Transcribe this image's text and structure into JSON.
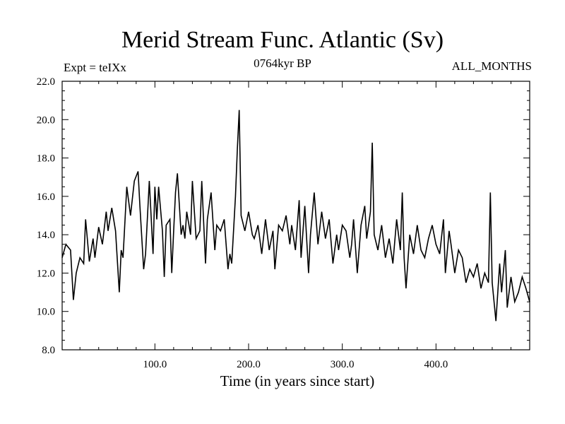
{
  "chart_data": {
    "type": "line",
    "title": "Merid Stream Func. Atlantic (Sv)",
    "subtitle": "0764kyr BP",
    "expt_label": "Expt = teIXx",
    "season_label": "ALL_MONTHS",
    "xlabel": "Time (in years since start)",
    "ylabel": "",
    "xlim": [
      1,
      500
    ],
    "ylim": [
      8.0,
      22.0
    ],
    "x_ticks": [
      100,
      200,
      300,
      400
    ],
    "x_tick_labels": [
      "100.0",
      "200.0",
      "300.0",
      "400.0"
    ],
    "y_ticks": [
      8,
      10,
      12,
      14,
      16,
      18,
      20,
      22
    ],
    "y_tick_labels": [
      "8.0",
      "10.0",
      "12.0",
      "14.0",
      "16.0",
      "18.0",
      "20.0",
      "22.0"
    ],
    "series": [
      {
        "name": "Merid Stream Func. Atlantic",
        "x": [
          1,
          5,
          10,
          13,
          16,
          20,
          24,
          26,
          30,
          34,
          36,
          40,
          44,
          48,
          50,
          54,
          58,
          62,
          64,
          66,
          70,
          74,
          78,
          82,
          84,
          88,
          90,
          94,
          98,
          100,
          102,
          104,
          108,
          110,
          112,
          116,
          118,
          120,
          122,
          124,
          128,
          130,
          132,
          134,
          138,
          140,
          144,
          148,
          150,
          154,
          156,
          160,
          164,
          166,
          170,
          174,
          178,
          180,
          182,
          186,
          188,
          190,
          192,
          196,
          200,
          204,
          206,
          210,
          214,
          218,
          222,
          226,
          228,
          232,
          236,
          240,
          244,
          246,
          250,
          254,
          256,
          260,
          264,
          266,
          270,
          274,
          278,
          282,
          286,
          290,
          294,
          296,
          300,
          304,
          308,
          310,
          312,
          316,
          320,
          324,
          326,
          330,
          332,
          334,
          338,
          342,
          346,
          350,
          354,
          358,
          362,
          364,
          366,
          368,
          372,
          376,
          380,
          384,
          388,
          392,
          396,
          400,
          404,
          408,
          410,
          414,
          416,
          420,
          424,
          428,
          432,
          436,
          440,
          444,
          448,
          452,
          456,
          458,
          460,
          464,
          468,
          470,
          474,
          476,
          480,
          484,
          488,
          492,
          496,
          500
        ],
        "values": [
          12.8,
          13.5,
          13.2,
          10.6,
          12.0,
          12.8,
          12.5,
          14.8,
          12.6,
          13.8,
          12.8,
          14.4,
          13.5,
          15.2,
          14.2,
          15.4,
          14.2,
          11.0,
          13.2,
          12.8,
          16.5,
          15.0,
          16.8,
          17.3,
          15.5,
          12.2,
          13.0,
          16.8,
          13.0,
          16.5,
          14.8,
          16.5,
          14.2,
          11.8,
          14.5,
          14.8,
          12.0,
          14.2,
          16.2,
          17.2,
          14.0,
          14.5,
          13.8,
          15.2,
          14.0,
          16.8,
          13.8,
          14.2,
          16.8,
          12.5,
          14.8,
          16.2,
          13.2,
          14.5,
          14.2,
          14.8,
          12.2,
          13.0,
          12.5,
          16.0,
          18.5,
          20.5,
          15.0,
          14.2,
          15.2,
          14.0,
          13.8,
          14.5,
          13.0,
          14.8,
          13.2,
          14.2,
          12.2,
          14.5,
          14.2,
          15.0,
          13.5,
          14.5,
          13.2,
          15.8,
          12.8,
          15.5,
          12.0,
          14.0,
          16.2,
          13.5,
          15.2,
          13.8,
          14.8,
          12.5,
          14.0,
          13.2,
          14.5,
          14.2,
          12.8,
          13.5,
          14.8,
          12.0,
          14.5,
          15.5,
          13.8,
          15.2,
          18.8,
          14.0,
          13.2,
          14.5,
          12.8,
          13.8,
          12.5,
          14.8,
          13.2,
          16.2,
          12.8,
          11.2,
          14.0,
          13.0,
          14.5,
          13.2,
          12.8,
          13.8,
          14.5,
          13.5,
          13.0,
          14.8,
          12.0,
          14.2,
          13.5,
          12.0,
          13.2,
          12.8,
          11.5,
          12.2,
          11.8,
          12.5,
          11.2,
          12.0,
          11.5,
          16.2,
          11.5,
          9.5,
          12.5,
          11.0,
          13.2,
          10.2,
          11.8,
          10.5,
          11.0,
          11.8,
          11.2,
          10.5
        ]
      }
    ]
  }
}
